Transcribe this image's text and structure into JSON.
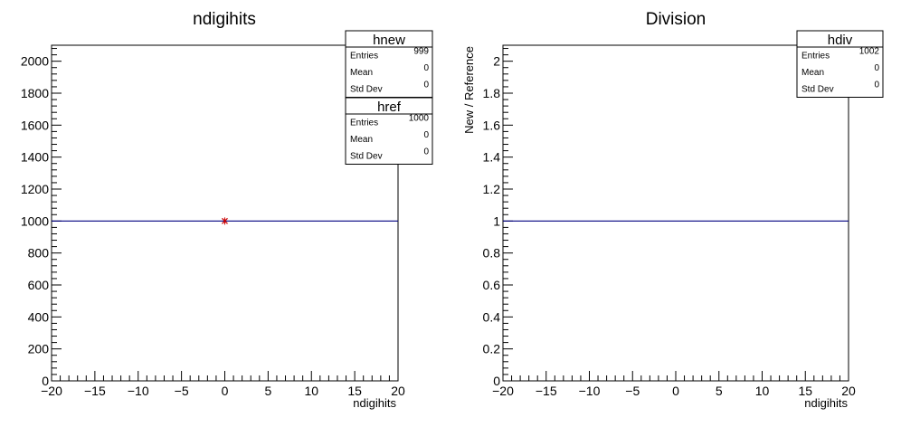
{
  "chart_data": [
    {
      "type": "histogram",
      "title": "ndigihits",
      "xlabel": "ndigihits",
      "ylabel": "",
      "xlim": [
        -20,
        20
      ],
      "ylim": [
        0,
        2100
      ],
      "x_ticks": [
        "−20",
        "−15",
        "−10",
        "−5",
        "0",
        "5",
        "10",
        "15",
        "20"
      ],
      "y_ticks": [
        "0",
        "200",
        "400",
        "600",
        "800",
        "1000",
        "1200",
        "1400",
        "1600",
        "1800",
        "2000"
      ],
      "y_tick_values": [
        0,
        200,
        400,
        600,
        800,
        1000,
        1200,
        1400,
        1600,
        1800,
        2000
      ],
      "series": [
        {
          "name": "hnew",
          "color": "#000080",
          "kind": "line",
          "y": 1000
        },
        {
          "name": "href",
          "color": "#cc0000",
          "kind": "marker",
          "x": 0,
          "y": 1000
        }
      ],
      "stats": [
        {
          "name": "hnew",
          "rows": [
            [
              "Entries",
              "999"
            ],
            [
              "Mean",
              "0"
            ],
            [
              "Std Dev",
              "0"
            ]
          ]
        },
        {
          "name": "href",
          "rows": [
            [
              "Entries",
              "1000"
            ],
            [
              "Mean",
              "0"
            ],
            [
              "Std Dev",
              "0"
            ]
          ]
        }
      ],
      "legend_position": "top-right",
      "grid": false
    },
    {
      "type": "histogram",
      "title": "Division",
      "xlabel": "ndigihits",
      "ylabel": "New / Reference",
      "xlim": [
        -20,
        20
      ],
      "ylim": [
        0,
        2.1
      ],
      "x_ticks": [
        "−20",
        "−15",
        "−10",
        "−5",
        "0",
        "5",
        "10",
        "15",
        "20"
      ],
      "y_ticks": [
        "0",
        "0.2",
        "0.4",
        "0.6",
        "0.8",
        "1",
        "1.2",
        "1.4",
        "1.6",
        "1.8",
        "2"
      ],
      "y_tick_values": [
        0,
        0.2,
        0.4,
        0.6,
        0.8,
        1,
        1.2,
        1.4,
        1.6,
        1.8,
        2
      ],
      "series": [
        {
          "name": "hdiv",
          "color": "#000080",
          "kind": "line",
          "y": 1
        }
      ],
      "stats": [
        {
          "name": "hdiv",
          "rows": [
            [
              "Entries",
              "1002"
            ],
            [
              "Mean",
              "0"
            ],
            [
              "Std Dev",
              "0"
            ]
          ]
        }
      ],
      "legend_position": "top-right",
      "grid": false
    }
  ]
}
